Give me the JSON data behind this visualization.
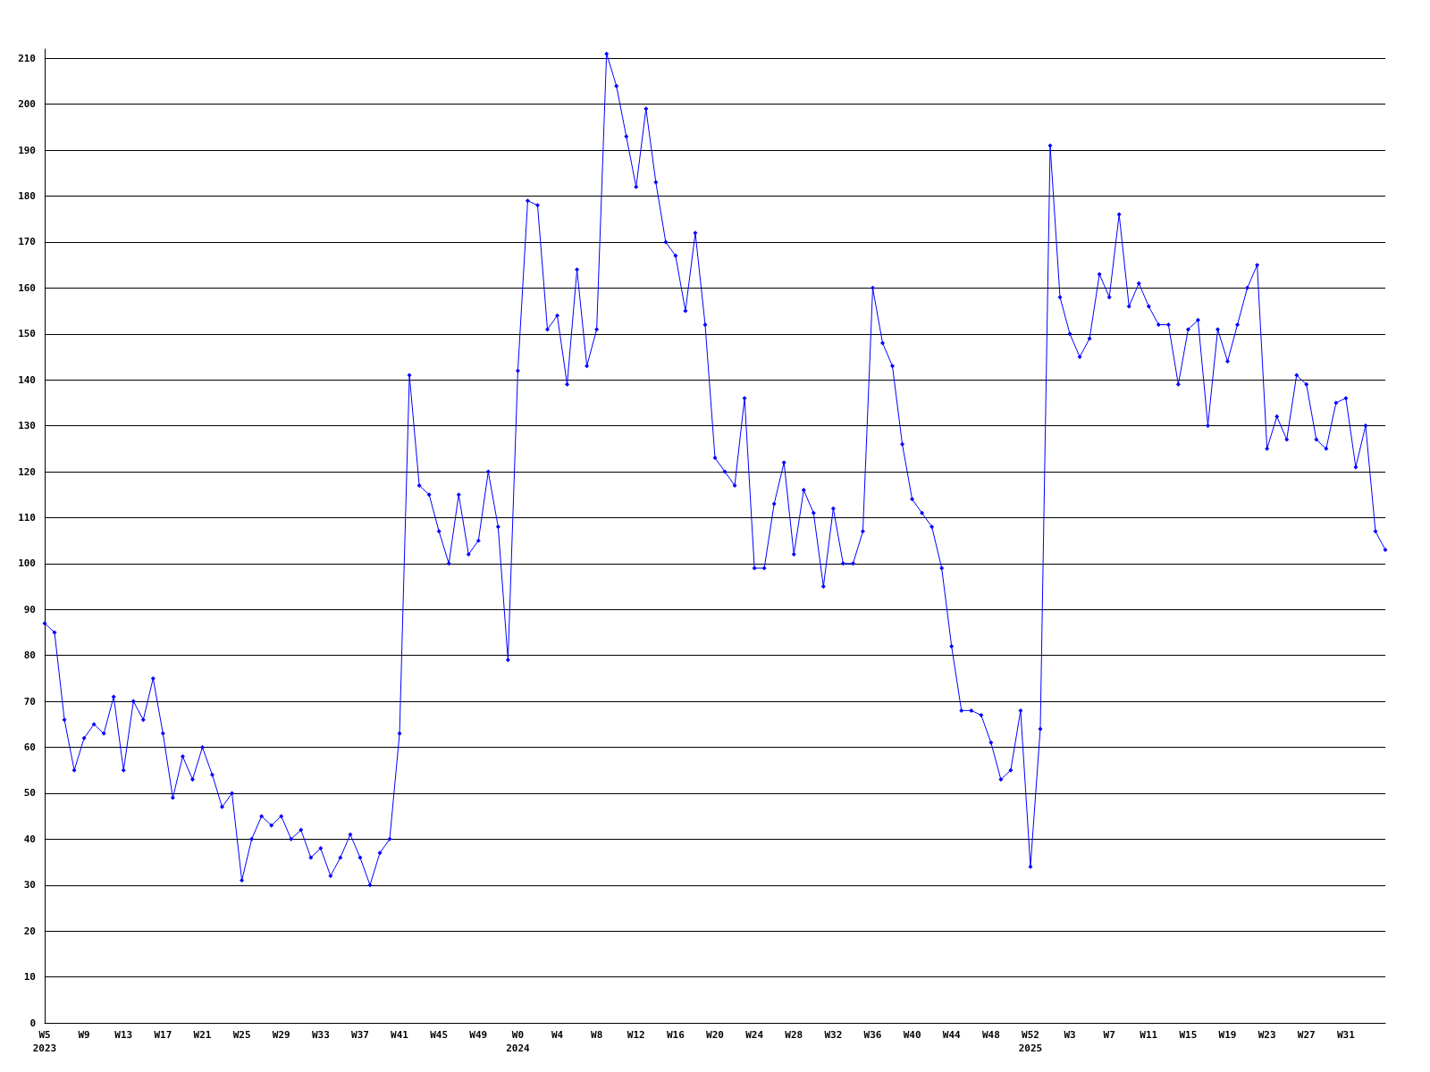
{
  "chart_data": {
    "type": "line",
    "categories": [
      "W5\n2023",
      null,
      null,
      null,
      "W9",
      null,
      null,
      null,
      "W13",
      null,
      null,
      null,
      "W17",
      null,
      null,
      null,
      "W21",
      null,
      null,
      null,
      "W25",
      null,
      null,
      null,
      "W29",
      null,
      null,
      null,
      "W33",
      null,
      null,
      null,
      "W37",
      null,
      null,
      null,
      "W41",
      null,
      null,
      null,
      "W45",
      null,
      null,
      null,
      "W49",
      null,
      null,
      null,
      "W0\n2024",
      null,
      null,
      null,
      "W4",
      null,
      null,
      null,
      "W8",
      null,
      null,
      null,
      "W12",
      null,
      null,
      null,
      "W16",
      null,
      null,
      null,
      "W20",
      null,
      null,
      null,
      "W24",
      null,
      null,
      null,
      "W28",
      null,
      null,
      null,
      "W32",
      null,
      null,
      null,
      "W36",
      null,
      null,
      null,
      "W40",
      null,
      null,
      null,
      "W44",
      null,
      null,
      null,
      "W48",
      null,
      null,
      null,
      "W52\n2025",
      null,
      null,
      null,
      "W3",
      null,
      null,
      null,
      "W7",
      null,
      null,
      null,
      "W11",
      null,
      null,
      null,
      "W15",
      null,
      null,
      null,
      "W19",
      null,
      null,
      null,
      "W23",
      null,
      null,
      null,
      "W27",
      null,
      null,
      null,
      "W31",
      null,
      null,
      null,
      null
    ],
    "series": [
      {
        "color": "#0000ff",
        "values": [
          87,
          85,
          66,
          55,
          62,
          65,
          63,
          71,
          55,
          70,
          66,
          75,
          63,
          49,
          58,
          53,
          60,
          54,
          47,
          50,
          31,
          40,
          45,
          43,
          45,
          40,
          42,
          36,
          38,
          32,
          36,
          41,
          36,
          30,
          37,
          40,
          63,
          141,
          117,
          115,
          107,
          100,
          115,
          102,
          105,
          120,
          108,
          79,
          142,
          179,
          178,
          151,
          154,
          139,
          164,
          143,
          151,
          211,
          204,
          193,
          182,
          199,
          183,
          170,
          167,
          155,
          172,
          152,
          123,
          120,
          117,
          136,
          99,
          99,
          113,
          122,
          102,
          116,
          111,
          95,
          112,
          100,
          100,
          107,
          160,
          148,
          143,
          126,
          114,
          111,
          108,
          99,
          82,
          68,
          68,
          67,
          61,
          53,
          55,
          68,
          34,
          64,
          191,
          158,
          150,
          145,
          149,
          163,
          158,
          176,
          156,
          161,
          156,
          152,
          152,
          139,
          151,
          153,
          130,
          151,
          144,
          152,
          160,
          165,
          125,
          132,
          127,
          141,
          139,
          127,
          125,
          135,
          136,
          121,
          130,
          107,
          103
        ]
      }
    ],
    "ylim": [
      0,
      212
    ],
    "yticks": [
      0,
      10,
      20,
      30,
      40,
      50,
      60,
      70,
      80,
      90,
      100,
      110,
      120,
      130,
      140,
      150,
      160,
      170,
      180,
      190,
      200,
      210
    ],
    "grid": "y",
    "marker": "diamond",
    "line_style": "solid"
  }
}
